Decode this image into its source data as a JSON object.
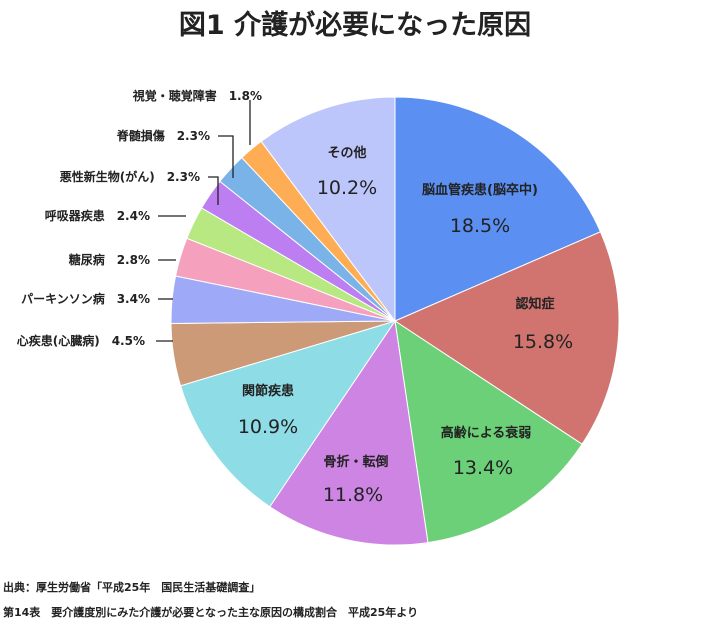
{
  "chart_data": {
    "type": "pie",
    "title": "図1 介護が必要になった原因",
    "unit": "%",
    "start": "12 o'clock",
    "direction": "clockwise",
    "slices": [
      {
        "name": "脳血管疾患(脳卒中)",
        "value": 18.5,
        "value_label": "18.5%",
        "color": "#5b8ff2",
        "label_style": "inside"
      },
      {
        "name": "認知症",
        "value": 15.8,
        "value_label": "15.8%",
        "color": "#d17470",
        "label_style": "inside"
      },
      {
        "name": "高齢による衰弱",
        "value": 13.4,
        "value_label": "13.4%",
        "color": "#6cd078",
        "label_style": "inside"
      },
      {
        "name": "骨折・転倒",
        "value": 11.8,
        "value_label": "11.8%",
        "color": "#cd84e3",
        "label_style": "inside"
      },
      {
        "name": "関節疾患",
        "value": 10.9,
        "value_label": "10.9%",
        "color": "#8edce6",
        "label_style": "inside"
      },
      {
        "name": "心疾患(心臓病)",
        "value": 4.5,
        "value_label": "4.5%",
        "color": "#cd9a78",
        "label_style": "outside"
      },
      {
        "name": "パーキンソン病",
        "value": 3.4,
        "value_label": "3.4%",
        "color": "#9eaaf7",
        "label_style": "outside"
      },
      {
        "name": "糖尿病",
        "value": 2.8,
        "value_label": "2.8%",
        "color": "#f5a0bd",
        "label_style": "outside"
      },
      {
        "name": "呼吸器疾患",
        "value": 2.4,
        "value_label": "2.4%",
        "color": "#b8e882",
        "label_style": "outside"
      },
      {
        "name": "悪性新生物(がん)",
        "value": 2.3,
        "value_label": "2.3%",
        "color": "#bd7ef2",
        "label_style": "outside"
      },
      {
        "name": "脊髄損傷",
        "value": 2.3,
        "value_label": "2.3%",
        "color": "#79b3e8",
        "label_style": "outside"
      },
      {
        "name": "視覚・聴覚障害",
        "value": 1.8,
        "value_label": "1.8%",
        "color": "#ffad55",
        "label_style": "outside"
      },
      {
        "name": "その他",
        "value": 10.2,
        "value_label": "10.2%",
        "color": "#bcc6fb",
        "label_style": "inside"
      }
    ]
  },
  "footer": {
    "source": "出典：厚生労働省「平成25年　国民生活基礎調査」",
    "note": "第14表　要介護度別にみた介護が必要となった主な原因の構成割合　平成25年より"
  }
}
